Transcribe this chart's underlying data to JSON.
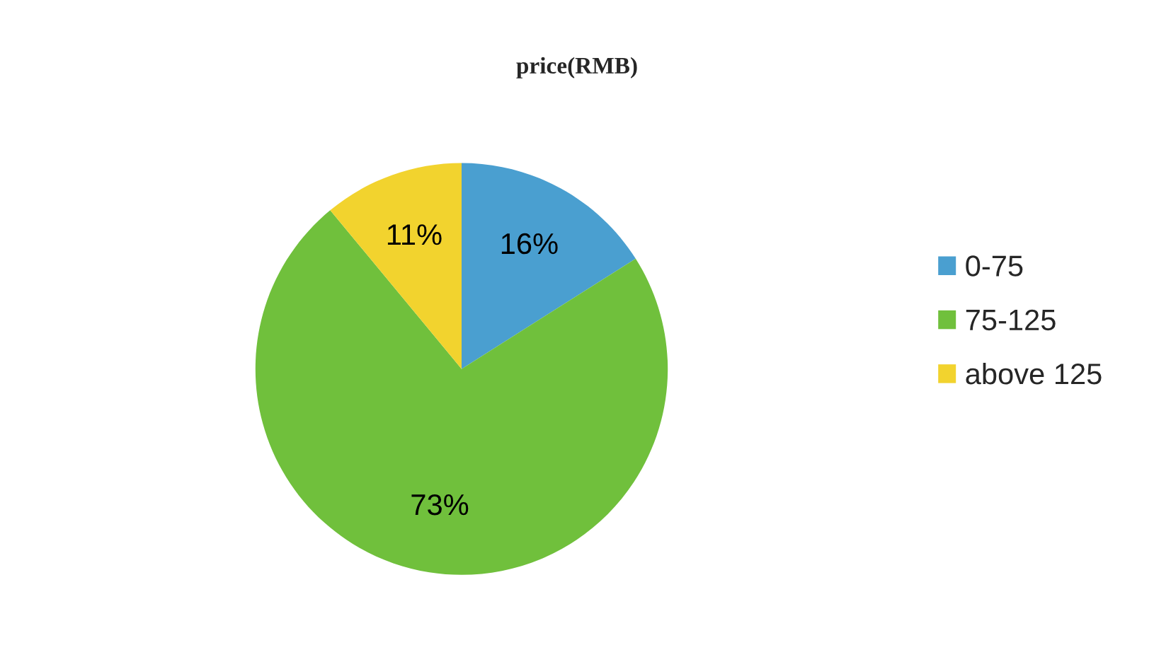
{
  "chart_data": {
    "type": "pie",
    "title": "price(RMB)",
    "categories": [
      "0-75",
      "75-125",
      "above 125"
    ],
    "values": [
      16,
      73,
      11
    ],
    "value_labels": [
      "16%",
      "73%",
      "11%"
    ],
    "colors": [
      "#4a9fd0",
      "#70c03c",
      "#f2d32e"
    ],
    "legend": "right"
  }
}
